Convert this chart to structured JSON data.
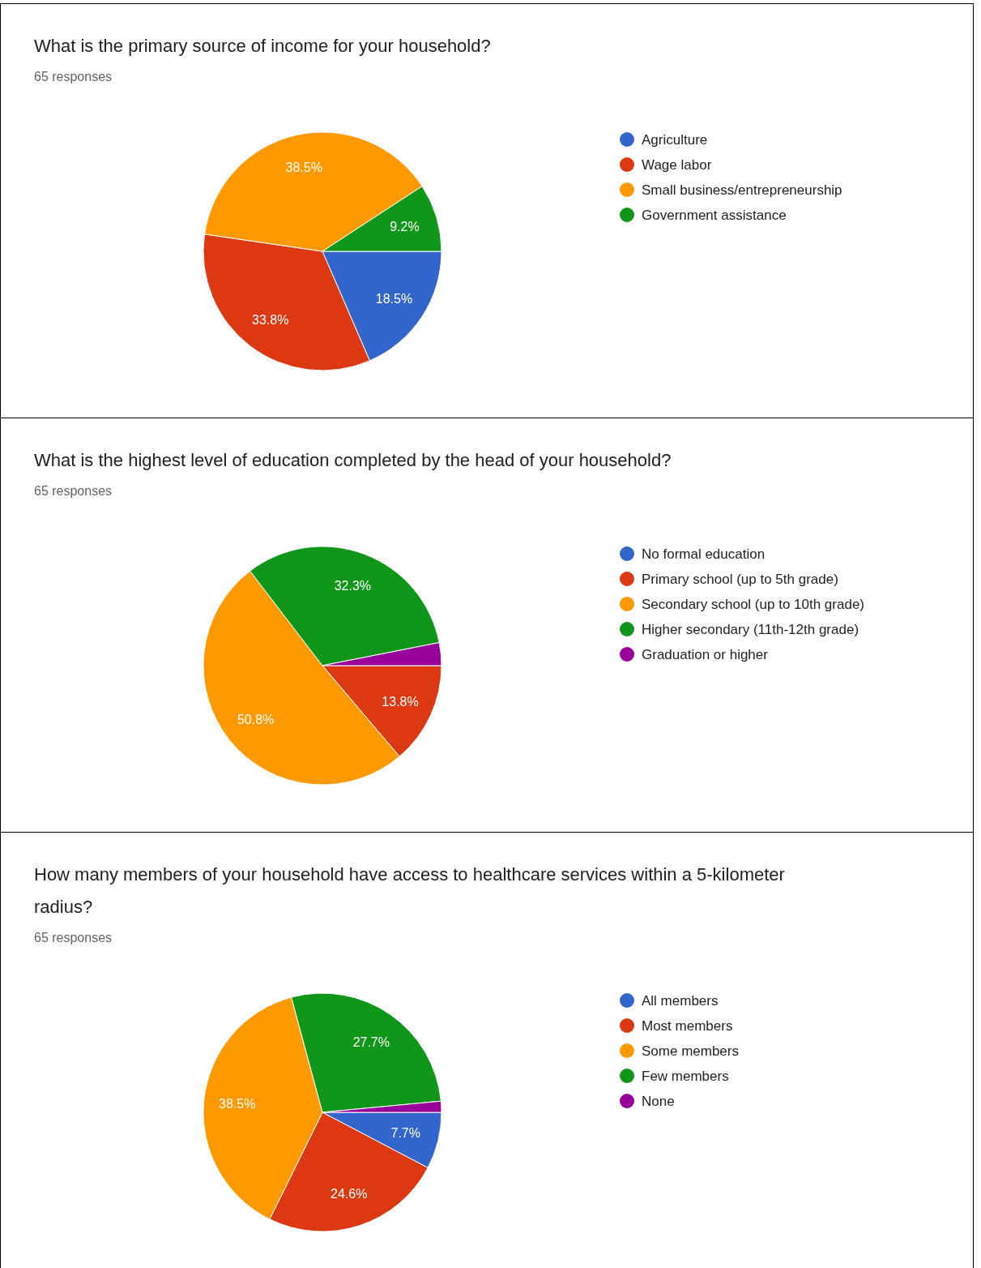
{
  "chart_data": [
    {
      "type": "pie",
      "title": "What is the primary source of income for your household?",
      "annotations": [
        "65 responses"
      ],
      "categories": [
        "Agriculture",
        "Wage labor",
        "Small business/entrepreneurship",
        "Government assistance"
      ],
      "values": [
        18.5,
        33.8,
        38.5,
        9.2
      ],
      "colors": [
        "#3366cc",
        "#dc3912",
        "#ff9900",
        "#109618"
      ],
      "value_labels": [
        "18.5%",
        "33.8%",
        "38.5%",
        "9.2%"
      ],
      "legend": "right"
    },
    {
      "type": "pie",
      "title": "What is the highest level of education completed by the head of your household?",
      "annotations": [
        "65 responses"
      ],
      "categories": [
        "No formal education",
        "Primary school (up to 5th grade)",
        "Secondary school (up to 10th grade)",
        "Higher secondary (11th-12th grade)",
        "Graduation or higher"
      ],
      "values": [
        0,
        13.8,
        50.8,
        32.3,
        3.1
      ],
      "colors": [
        "#3366cc",
        "#dc3912",
        "#ff9900",
        "#109618",
        "#990099"
      ],
      "value_labels": [
        null,
        "13.8%",
        "50.8%",
        "32.3%",
        null
      ],
      "legend": "right"
    },
    {
      "type": "pie",
      "title": "How many members of your household have access to healthcare services within a 5-kilometer radius?",
      "annotations": [
        "65 responses"
      ],
      "categories": [
        "All members",
        "Most members",
        "Some members",
        "Few members",
        "None"
      ],
      "values": [
        7.7,
        24.6,
        38.5,
        27.7,
        1.5
      ],
      "colors": [
        "#3366cc",
        "#dc3912",
        "#ff9900",
        "#109618",
        "#990099"
      ],
      "value_labels": [
        "7.7%",
        "24.6%",
        "38.5%",
        "27.7%",
        null
      ],
      "legend": "right"
    }
  ]
}
